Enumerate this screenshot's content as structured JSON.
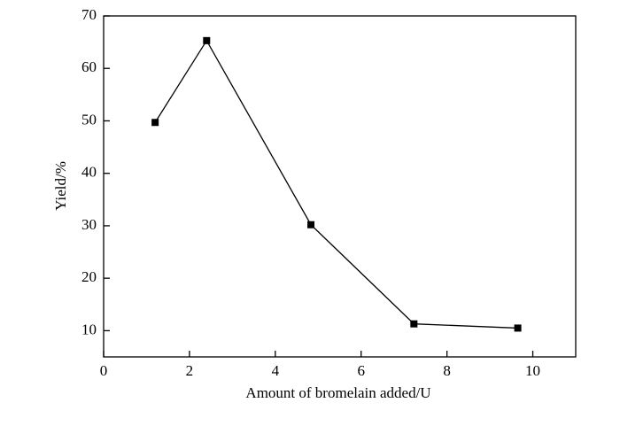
{
  "chart_data": {
    "type": "line",
    "x_label": "Amount of bromelain added/U",
    "y_label": "Yield/%",
    "series": [
      {
        "color": "#000000",
        "x": [
          1.2,
          2.4,
          4.83,
          7.23,
          9.65
        ],
        "values": [
          49.7,
          65.3,
          30.2,
          11.3,
          10.5
        ]
      }
    ],
    "xlim": [
      0,
      11
    ],
    "xticks": [
      0,
      2,
      4,
      6,
      8,
      10
    ],
    "ylim": [
      5,
      70
    ],
    "yticks": [
      10,
      20,
      30,
      40,
      50,
      60,
      70
    ],
    "grid": false
  }
}
